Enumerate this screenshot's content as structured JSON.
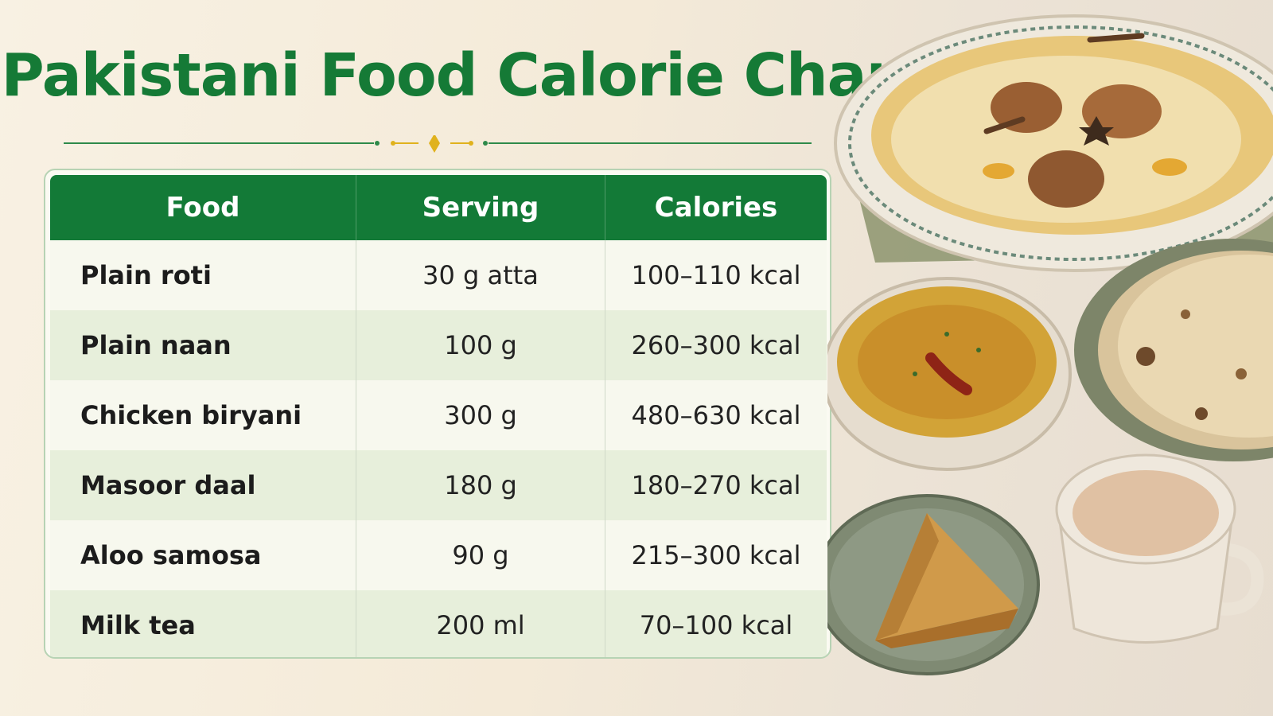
{
  "title": "Pakistani Food Calorie Chart",
  "colors": {
    "accent_green": "#137a37",
    "gold": "#e0b21d",
    "row_alt": "#e7efdb"
  },
  "table": {
    "headers": [
      "Food",
      "Serving",
      "Calories"
    ],
    "rows": [
      {
        "food": "Plain roti",
        "serving": "30 g atta",
        "calories": "100–110 kcal"
      },
      {
        "food": "Plain naan",
        "serving": "100 g",
        "calories": "260–300 kcal"
      },
      {
        "food": "Chicken biryani",
        "serving": "300 g",
        "calories": "480–630 kcal"
      },
      {
        "food": "Masoor daal",
        "serving": "180 g",
        "calories": "180–270 kcal"
      },
      {
        "food": "Aloo samosa",
        "serving": "90 g",
        "calories": "215–300 kcal"
      },
      {
        "food": "Milk tea",
        "serving": "200 ml",
        "calories": "70–100 kcal"
      }
    ]
  },
  "illustration_icons": [
    "biryani-plate-icon",
    "daal-bowl-icon",
    "roti-stack-icon",
    "samosa-plate-icon",
    "tea-cup-icon"
  ]
}
